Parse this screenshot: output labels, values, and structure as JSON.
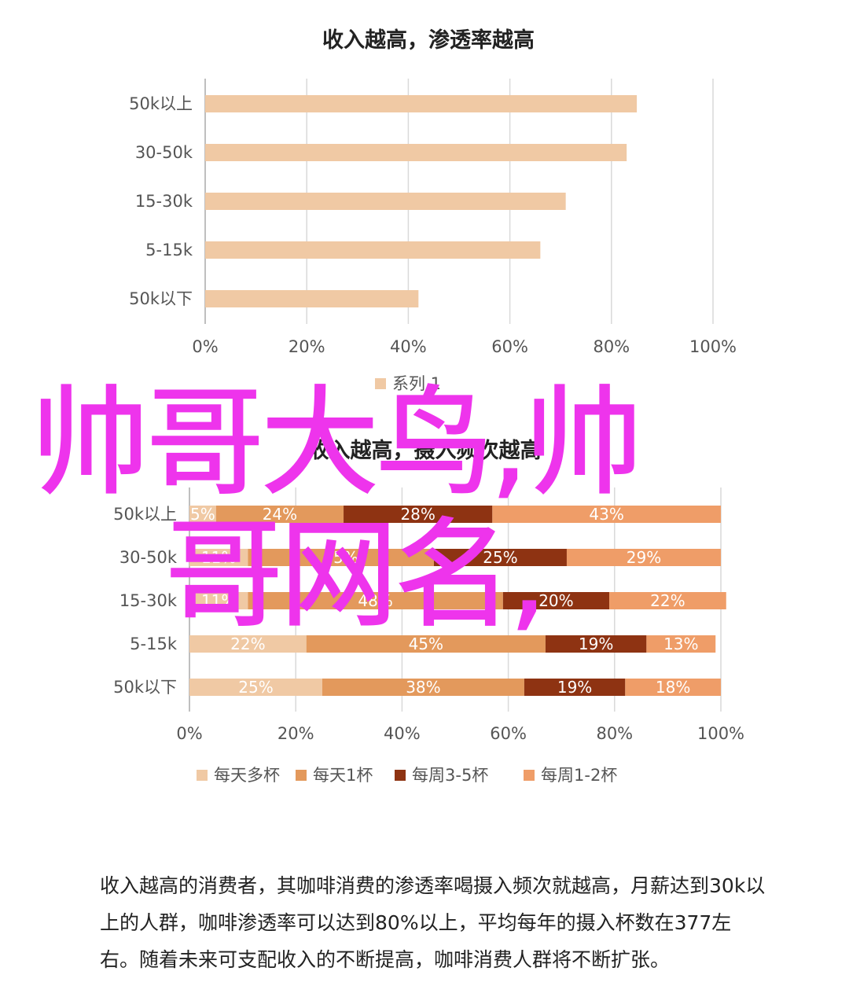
{
  "chart_data": [
    {
      "type": "bar",
      "orientation": "horizontal",
      "title": "收入越高，渗透率越高",
      "categories": [
        "50k以上",
        "30-50k",
        "15-30k",
        "5-15k",
        "50k以下"
      ],
      "series": [
        {
          "name": "系列 1",
          "values": [
            85,
            83,
            71,
            66,
            42
          ]
        }
      ],
      "xticks": [
        "0%",
        "20%",
        "40%",
        "60%",
        "80%",
        "100%"
      ],
      "xlim": [
        0,
        100
      ],
      "grid": true,
      "legend": "bottom",
      "colors": [
        "#f0c9a4"
      ]
    },
    {
      "type": "bar",
      "orientation": "horizontal",
      "stacked": true,
      "title": "收入越高，摄入频次越高",
      "categories": [
        "50k以上",
        "30-50k",
        "15-30k",
        "5-15k",
        "50k以下"
      ],
      "series": [
        {
          "name": "每天多杯",
          "values": [
            5,
            11,
            11,
            22,
            25
          ]
        },
        {
          "name": "每天1杯",
          "values": [
            24,
            35,
            48,
            45,
            38
          ]
        },
        {
          "name": "每周3-5杯",
          "values": [
            28,
            25,
            20,
            19,
            19
          ]
        },
        {
          "name": "每周1-2杯",
          "values": [
            43,
            29,
            22,
            13,
            18
          ]
        }
      ],
      "data_labels": [
        [
          "5%",
          "24%",
          "28%",
          "43%"
        ],
        [
          "11%",
          "35%",
          "25%",
          "29%"
        ],
        [
          "11%",
          "48%",
          "20%",
          "22%"
        ],
        [
          "22%",
          "45%",
          "19%",
          "13%"
        ],
        [
          "25%",
          "38%",
          "19%",
          "18%"
        ]
      ],
      "xticks": [
        "0%",
        "20%",
        "40%",
        "60%",
        "80%",
        "100%"
      ],
      "xlim": [
        0,
        100
      ],
      "grid": true,
      "legend": "bottom",
      "colors": [
        "#f0c9a4",
        "#e3995c",
        "#8e3312",
        "#ef9d68"
      ]
    }
  ],
  "watermark": {
    "line1": "帅哥大鸟,帅",
    "line2": "哥网名,",
    "color": "#ee34ec"
  },
  "caption": "收入越高的消费者，其咖啡消费的渗透率喝摄入频次就越高，月薪达到30k以上的人群，咖啡渗透率可以达到80%以上，平均每年的摄入杯数在377左右。随着未来可支配收入的不断提高，咖啡消费人群将不断扩张。"
}
